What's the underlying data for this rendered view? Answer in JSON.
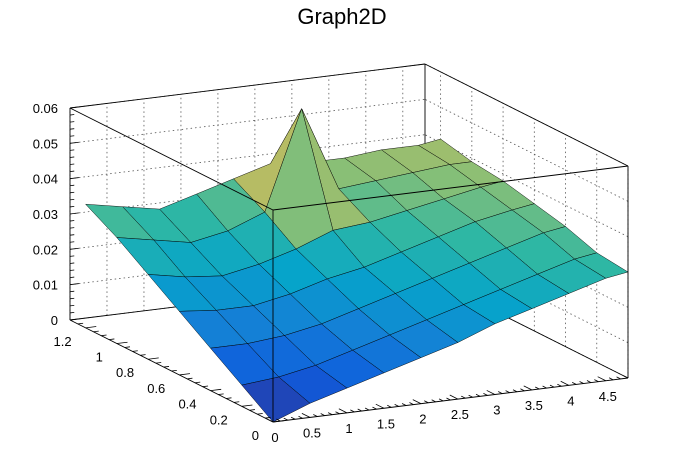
{
  "chart_data": {
    "type": "surface",
    "title": "Graph2D",
    "xlabel": "",
    "ylabel": "",
    "zlabel": "",
    "xlim": [
      0,
      4.8
    ],
    "ylim": [
      0,
      1.3
    ],
    "zlim": [
      0,
      0.06
    ],
    "x_ticks": [
      "0",
      "0.5",
      "1",
      "1.5",
      "2",
      "2.5",
      "3",
      "3.5",
      "4",
      "4.5"
    ],
    "y_ticks": [
      "0",
      "0.2",
      "0.4",
      "0.6",
      "0.8",
      "1",
      "1.2"
    ],
    "z_ticks": [
      "0",
      "0.01",
      "0.02",
      "0.03",
      "0.04",
      "0.05",
      "0.06"
    ],
    "grid": true,
    "palette": [
      "#352a87",
      "#0f5cdd",
      "#1481d6",
      "#06a4ca",
      "#2eb7a4",
      "#87bf77",
      "#d1bb59",
      "#fec832",
      "#f9fb0e"
    ],
    "grid_x": [
      0,
      0.5,
      1,
      1.5,
      2,
      2.5,
      3,
      3.5,
      4,
      4.5,
      4.8
    ],
    "grid_y": [
      0,
      0.2,
      0.4,
      0.6,
      0.8,
      1.0,
      1.2
    ],
    "z": [
      [
        0.0,
        0.004,
        0.007,
        0.01,
        0.013,
        0.016,
        0.02,
        0.023,
        0.026,
        0.029,
        0.03
      ],
      [
        0.006,
        0.007,
        0.009,
        0.012,
        0.015,
        0.018,
        0.021,
        0.024,
        0.027,
        0.03,
        0.031
      ],
      [
        0.012,
        0.012,
        0.013,
        0.015,
        0.018,
        0.021,
        0.024,
        0.027,
        0.03,
        0.033,
        0.034
      ],
      [
        0.018,
        0.017,
        0.017,
        0.019,
        0.022,
        0.024,
        0.027,
        0.03,
        0.033,
        0.035,
        0.036
      ],
      [
        0.024,
        0.022,
        0.021,
        0.023,
        0.026,
        0.03,
        0.031,
        0.033,
        0.035,
        0.037,
        0.038
      ],
      [
        0.03,
        0.028,
        0.026,
        0.028,
        0.032,
        0.06,
        0.036,
        0.037,
        0.038,
        0.039,
        0.039
      ],
      [
        0.035,
        0.033,
        0.031,
        0.034,
        0.037,
        0.04,
        0.039,
        0.039,
        0.04,
        0.04,
        0.041
      ]
    ]
  }
}
